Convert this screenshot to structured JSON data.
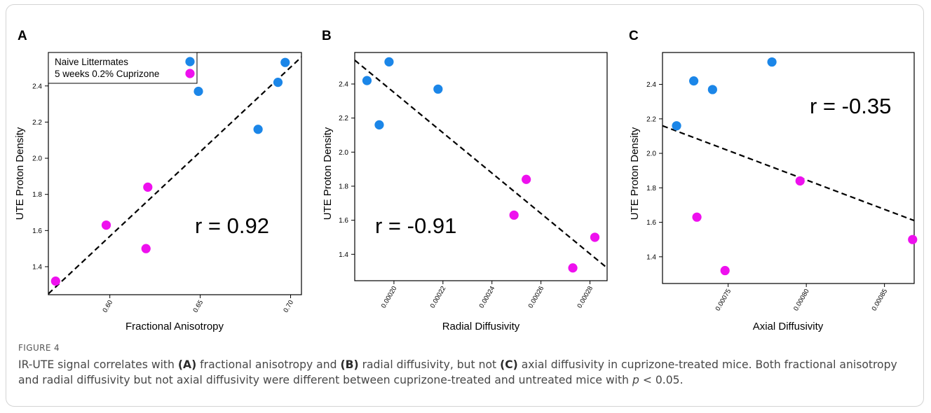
{
  "figure": {
    "label": "FIGURE 4",
    "caption_parts": [
      {
        "t": "IR-UTE signal correlates with "
      },
      {
        "t": "(A)",
        "b": true
      },
      {
        "t": " fractional anisotropy and "
      },
      {
        "t": "(B)",
        "b": true
      },
      {
        "t": " radial diffusivity, but not "
      },
      {
        "t": "(C)",
        "b": true
      },
      {
        "t": " axial diffusivity in cuprizone-treated mice. Both fractional anisotropy and radial diffusivity but not axial diffusivity were different between cuprizone-treated and untreated mice with "
      },
      {
        "t": "p",
        "i": true
      },
      {
        "t": " < 0.05."
      }
    ]
  },
  "colors": {
    "naive": "#1b86e8",
    "cuprizone": "#ee10ee",
    "axis": "#000000",
    "fit_line": "#000000"
  },
  "chart_data": [
    {
      "type": "scatter",
      "panel": "A",
      "title": "",
      "xlabel": "Fractional Anisotropy",
      "ylabel": "UTE Proton Density",
      "xlim": [
        0.566,
        0.706
      ],
      "ylim": [
        1.245,
        2.585
      ],
      "xticks": [
        0.6,
        0.65,
        0.7
      ],
      "xtick_labels": [
        "0.60",
        "0.65",
        "0.70"
      ],
      "yticks": [
        1.4,
        1.6,
        1.8,
        2.0,
        2.2,
        2.4
      ],
      "ytick_labels": [
        "1.4",
        "1.6",
        "1.8",
        "2.0",
        "2.2",
        "2.4"
      ],
      "grid": false,
      "legend": {
        "placement": "top-left",
        "entries": [
          {
            "label": "Naive Littermates",
            "series": 0
          },
          {
            "label": "5 weeks 0.2% Cuprizone",
            "series": 1
          }
        ]
      },
      "annotation": "r = 0.92",
      "series": [
        {
          "name": "Naive Littermates",
          "x": [
            0.649,
            0.682,
            0.693,
            0.697
          ],
          "y": [
            2.37,
            2.16,
            2.42,
            2.53
          ]
        },
        {
          "name": "5 weeks 0.2% Cuprizone",
          "x": [
            0.57,
            0.598,
            0.62,
            0.621
          ],
          "y": [
            1.32,
            1.63,
            1.5,
            1.84
          ]
        }
      ],
      "fit_line": {
        "x": [
          0.566,
          0.706
        ],
        "y": [
          1.25,
          2.56
        ]
      }
    },
    {
      "type": "scatter",
      "panel": "B",
      "title": "",
      "xlabel": "Radial Diffusivity",
      "ylabel": "UTE Proton Density",
      "xlim": [
        0.000184,
        0.000287
      ],
      "ylim": [
        1.245,
        2.585
      ],
      "xticks": [
        0.0002,
        0.00022,
        0.00024,
        0.00026,
        0.00028
      ],
      "xtick_labels": [
        "0.00020",
        "0.00022",
        "0.00024",
        "0.00026",
        "0.00028"
      ],
      "yticks": [
        1.4,
        1.6,
        1.8,
        2.0,
        2.2,
        2.4
      ],
      "ytick_labels": [
        "1.4",
        "1.6",
        "1.8",
        "2.0",
        "2.2",
        "2.4"
      ],
      "grid": false,
      "annotation": "r = -0.91",
      "series": [
        {
          "name": "Naive Littermates",
          "x": [
            0.000189,
            0.000194,
            0.000198,
            0.000218
          ],
          "y": [
            2.42,
            2.16,
            2.53,
            2.37
          ]
        },
        {
          "name": "5 weeks 0.2% Cuprizone",
          "x": [
            0.000249,
            0.000254,
            0.000273,
            0.000282
          ],
          "y": [
            1.63,
            1.84,
            1.32,
            1.5
          ]
        }
      ],
      "fit_line": {
        "x": [
          0.000184,
          0.000287
        ],
        "y": [
          2.54,
          1.32
        ]
      }
    },
    {
      "type": "scatter",
      "panel": "C",
      "title": "",
      "xlabel": "Axial Diffusivity",
      "ylabel": "UTE Proton Density",
      "xlim": [
        0.000708,
        0.000869
      ],
      "ylim": [
        1.245,
        2.585
      ],
      "xticks": [
        0.00075,
        0.0008,
        0.00085
      ],
      "xtick_labels": [
        "0.00075",
        "0.00080",
        "0.00085"
      ],
      "yticks": [
        1.4,
        1.6,
        1.8,
        2.0,
        2.2,
        2.4
      ],
      "ytick_labels": [
        "1.4",
        "1.6",
        "1.8",
        "2.0",
        "2.2",
        "2.4"
      ],
      "grid": false,
      "annotation": "r = -0.35",
      "series": [
        {
          "name": "Naive Littermates",
          "x": [
            0.000717,
            0.000728,
            0.00074,
            0.000778
          ],
          "y": [
            2.16,
            2.42,
            2.37,
            2.53
          ]
        },
        {
          "name": "5 weeks 0.2% Cuprizone",
          "x": [
            0.00073,
            0.000748,
            0.000796,
            0.000868
          ],
          "y": [
            1.63,
            1.32,
            1.84,
            1.5
          ]
        }
      ],
      "fit_line": {
        "x": [
          0.000708,
          0.000869
        ],
        "y": [
          2.16,
          1.61
        ]
      }
    }
  ]
}
